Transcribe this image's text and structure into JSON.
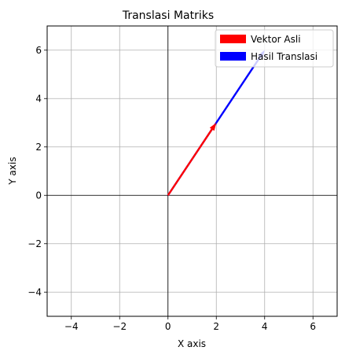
{
  "chart_data": {
    "type": "vector",
    "title": "Translasi Matriks",
    "xlabel": "X axis",
    "ylabel": "Y axis",
    "xlim": [
      -5,
      7
    ],
    "ylim": [
      -5,
      7
    ],
    "xticks": [
      -4,
      -2,
      0,
      2,
      4,
      6
    ],
    "yticks": [
      -4,
      -2,
      0,
      2,
      4,
      6
    ],
    "xtick_labels": [
      "−4",
      "−2",
      "0",
      "2",
      "4",
      "6"
    ],
    "ytick_labels": [
      "−4",
      "−2",
      "0",
      "2",
      "4",
      "6"
    ],
    "grid": true,
    "reference_lines": {
      "x": 0,
      "y": 0
    },
    "legend_position": "top-right",
    "series": [
      {
        "name": "Vektor Asli",
        "color": "#ff0000",
        "start": [
          0,
          0
        ],
        "end": [
          2,
          3
        ]
      },
      {
        "name": "Hasil Translasi",
        "color": "#0000ff",
        "start": [
          0,
          0
        ],
        "end": [
          4,
          6
        ]
      }
    ]
  }
}
